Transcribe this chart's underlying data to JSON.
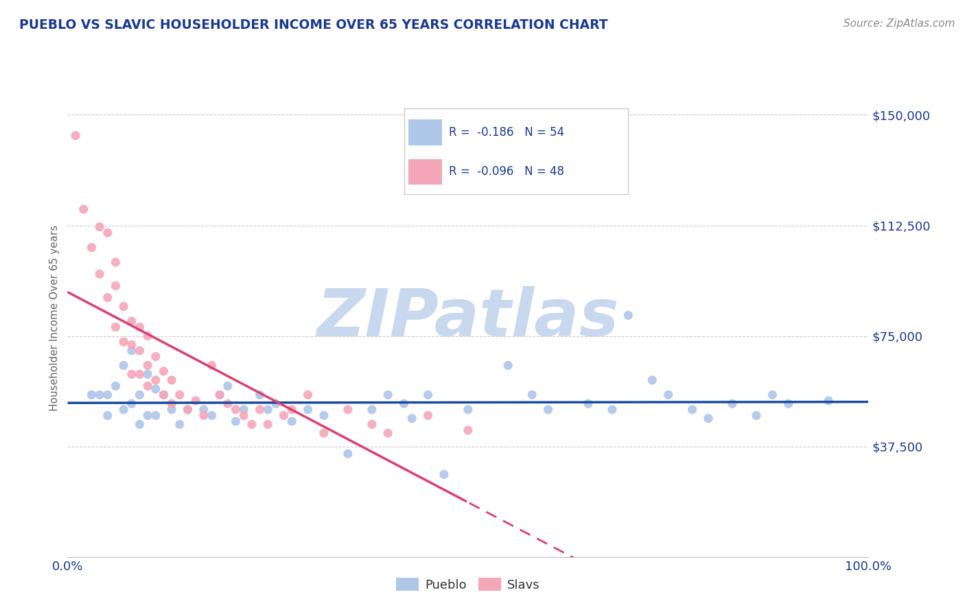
{
  "title": "PUEBLO VS SLAVIC HOUSEHOLDER INCOME OVER 65 YEARS CORRELATION CHART",
  "source": "Source: ZipAtlas.com",
  "ylabel": "Householder Income Over 65 years",
  "xlim": [
    0,
    100
  ],
  "ylim": [
    0,
    162000
  ],
  "yticks": [
    37500,
    75000,
    112500,
    150000
  ],
  "ytick_labels": [
    "$37,500",
    "$75,000",
    "$112,500",
    "$150,000"
  ],
  "xtick_labels": [
    "0.0%",
    "100.0%"
  ],
  "legend_entries": [
    {
      "label": "R =  -0.186   N = 54",
      "color": "#aec6e8"
    },
    {
      "label": "R =  -0.096   N = 48",
      "color": "#f4a7b9"
    }
  ],
  "bottom_legend": [
    "Pueblo",
    "Slavs"
  ],
  "pueblo_color": "#aec6e8",
  "slavs_color": "#f4a7b9",
  "pueblo_line_color": "#1a4a9e",
  "slavs_line_color": "#d94070",
  "title_color": "#1a3a8c",
  "axis_color": "#1a3a8c",
  "watermark": "ZIPatlas",
  "watermark_color": "#c8d8ee",
  "pueblo_x": [
    3,
    4,
    5,
    5,
    6,
    7,
    7,
    8,
    8,
    9,
    9,
    10,
    10,
    11,
    11,
    12,
    13,
    14,
    15,
    17,
    18,
    19,
    20,
    21,
    22,
    24,
    25,
    26,
    28,
    30,
    32,
    35,
    38,
    40,
    42,
    43,
    45,
    47,
    50,
    55,
    58,
    60,
    65,
    68,
    70,
    73,
    75,
    78,
    80,
    83,
    86,
    88,
    90,
    95
  ],
  "pueblo_y": [
    55000,
    55000,
    55000,
    48000,
    58000,
    65000,
    50000,
    70000,
    52000,
    55000,
    45000,
    62000,
    48000,
    57000,
    48000,
    55000,
    50000,
    45000,
    50000,
    50000,
    48000,
    55000,
    58000,
    46000,
    50000,
    55000,
    50000,
    52000,
    46000,
    50000,
    48000,
    35000,
    50000,
    55000,
    52000,
    47000,
    55000,
    28000,
    50000,
    65000,
    55000,
    50000,
    52000,
    50000,
    82000,
    60000,
    55000,
    50000,
    47000,
    52000,
    48000,
    55000,
    52000,
    53000
  ],
  "slavs_x": [
    1,
    2,
    3,
    4,
    4,
    5,
    5,
    6,
    6,
    6,
    7,
    7,
    8,
    8,
    8,
    9,
    9,
    9,
    10,
    10,
    10,
    11,
    11,
    12,
    12,
    13,
    13,
    14,
    15,
    16,
    17,
    18,
    19,
    20,
    21,
    22,
    23,
    24,
    25,
    27,
    28,
    30,
    32,
    35,
    38,
    40,
    45,
    50
  ],
  "slavs_y": [
    143000,
    118000,
    105000,
    112000,
    96000,
    110000,
    88000,
    100000,
    92000,
    78000,
    85000,
    73000,
    80000,
    72000,
    62000,
    78000,
    70000,
    62000,
    75000,
    65000,
    58000,
    68000,
    60000,
    63000,
    55000,
    60000,
    52000,
    55000,
    50000,
    53000,
    48000,
    65000,
    55000,
    52000,
    50000,
    48000,
    45000,
    50000,
    45000,
    48000,
    50000,
    55000,
    42000,
    50000,
    45000,
    42000,
    48000,
    43000
  ]
}
